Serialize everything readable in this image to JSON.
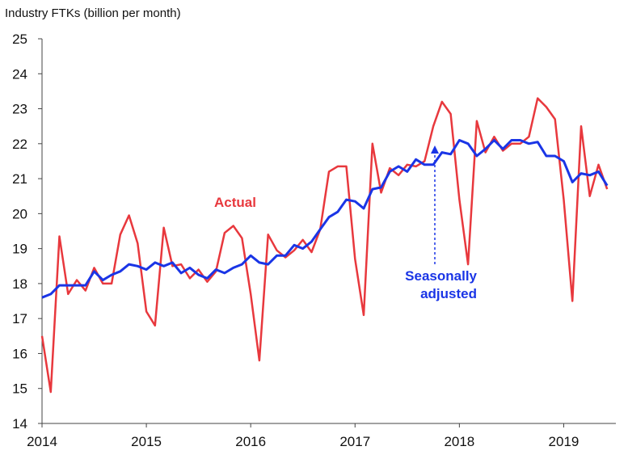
{
  "chart_data": {
    "type": "line",
    "ylabel": "Industry FTKs (billion per month)",
    "ylim": [
      14,
      25
    ],
    "yticks": [
      14,
      15,
      16,
      17,
      18,
      19,
      20,
      21,
      22,
      23,
      24,
      25
    ],
    "xlim": [
      2014,
      2019.5
    ],
    "xticks": [
      "2014",
      "2015",
      "2016",
      "2017",
      "2018",
      "2019"
    ],
    "grid": false,
    "colors": {
      "actual": "#e8383d",
      "sa": "#1a35e6"
    },
    "annotations": {
      "actual": "Actual",
      "sa_line1": "Seasonally",
      "sa_line2": "adjusted"
    },
    "series": [
      {
        "name": "Actual",
        "values": [
          16.5,
          14.9,
          19.35,
          17.7,
          18.1,
          17.8,
          18.45,
          18.0,
          18.0,
          19.4,
          19.95,
          19.15,
          17.2,
          16.8,
          19.6,
          18.5,
          18.55,
          18.15,
          18.4,
          18.05,
          18.35,
          19.45,
          19.65,
          19.3,
          17.7,
          15.8,
          19.4,
          18.95,
          18.75,
          18.95,
          19.25,
          18.9,
          19.55,
          21.2,
          21.35,
          21.35,
          18.7,
          17.1,
          22.0,
          20.6,
          21.3,
          21.1,
          21.4,
          21.35,
          21.5,
          22.5,
          23.2,
          22.85,
          20.4,
          18.55,
          22.65,
          21.75,
          22.2,
          21.8,
          22.0,
          22.0,
          22.2,
          23.3,
          23.05,
          22.7,
          20.4,
          17.5,
          22.5,
          20.5,
          21.4,
          20.7
        ]
      },
      {
        "name": "Seasonally adjusted",
        "values": [
          17.6,
          17.7,
          17.95,
          17.95,
          17.95,
          17.95,
          18.35,
          18.1,
          18.25,
          18.35,
          18.55,
          18.5,
          18.4,
          18.6,
          18.5,
          18.6,
          18.3,
          18.45,
          18.25,
          18.15,
          18.4,
          18.3,
          18.45,
          18.55,
          18.8,
          18.6,
          18.55,
          18.8,
          18.8,
          19.1,
          19.0,
          19.2,
          19.55,
          19.9,
          20.05,
          20.4,
          20.35,
          20.15,
          20.7,
          20.75,
          21.2,
          21.35,
          21.2,
          21.55,
          21.4,
          21.4,
          21.75,
          21.7,
          22.1,
          22.0,
          21.65,
          21.85,
          22.1,
          21.85,
          22.1,
          22.1,
          22.0,
          22.05,
          21.65,
          21.65,
          21.5,
          20.9,
          21.15,
          21.1,
          21.2,
          20.8
        ]
      }
    ]
  }
}
